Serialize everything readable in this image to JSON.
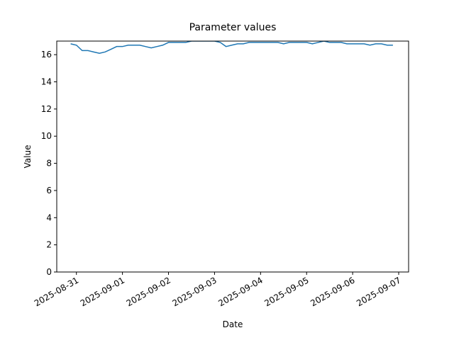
{
  "chart_data": {
    "type": "line",
    "title": "Parameter values",
    "x_label": "Date",
    "y_label": "Value",
    "x": [
      "2025-08-30 21:00",
      "2025-08-31 00:00",
      "2025-08-31 03:00",
      "2025-08-31 06:00",
      "2025-08-31 09:00",
      "2025-08-31 12:00",
      "2025-08-31 15:00",
      "2025-08-31 18:00",
      "2025-08-31 21:00",
      "2025-09-01 00:00",
      "2025-09-01 03:00",
      "2025-09-01 06:00",
      "2025-09-01 09:00",
      "2025-09-01 12:00",
      "2025-09-01 15:00",
      "2025-09-01 18:00",
      "2025-09-01 21:00",
      "2025-09-02 00:00",
      "2025-09-02 03:00",
      "2025-09-02 06:00",
      "2025-09-02 09:00",
      "2025-09-02 12:00",
      "2025-09-02 15:00",
      "2025-09-02 18:00",
      "2025-09-02 21:00",
      "2025-09-03 00:00",
      "2025-09-03 03:00",
      "2025-09-03 06:00",
      "2025-09-03 09:00",
      "2025-09-03 12:00",
      "2025-09-03 15:00",
      "2025-09-03 18:00",
      "2025-09-03 21:00",
      "2025-09-04 00:00",
      "2025-09-04 03:00",
      "2025-09-04 06:00",
      "2025-09-04 09:00",
      "2025-09-04 12:00",
      "2025-09-04 15:00",
      "2025-09-04 18:00",
      "2025-09-04 21:00",
      "2025-09-05 00:00",
      "2025-09-05 03:00",
      "2025-09-05 06:00",
      "2025-09-05 09:00",
      "2025-09-05 12:00",
      "2025-09-05 15:00",
      "2025-09-05 18:00",
      "2025-09-05 21:00",
      "2025-09-06 00:00",
      "2025-09-06 03:00",
      "2025-09-06 06:00",
      "2025-09-06 09:00",
      "2025-09-06 12:00",
      "2025-09-06 15:00",
      "2025-09-06 18:00",
      "2025-09-06 21:00"
    ],
    "series": [
      {
        "color": "#1f77b4",
        "values": [
          16.8,
          16.7,
          16.3,
          16.3,
          16.2,
          16.1,
          16.2,
          16.4,
          16.6,
          16.6,
          16.7,
          16.7,
          16.7,
          16.6,
          16.5,
          16.6,
          16.7,
          16.9,
          16.9,
          16.9,
          16.9,
          17.0,
          17.0,
          17.0,
          17.0,
          17.0,
          16.9,
          16.6,
          16.7,
          16.8,
          16.8,
          16.9,
          16.9,
          16.9,
          16.9,
          16.9,
          16.9,
          16.8,
          16.9,
          16.9,
          16.9,
          16.9,
          16.8,
          16.9,
          17.0,
          16.9,
          16.9,
          16.9,
          16.8,
          16.8,
          16.8,
          16.8,
          16.7,
          16.8,
          16.8,
          16.7,
          16.7
        ]
      }
    ],
    "xlim": [
      "2025-08-30 13:45",
      "2025-09-07 05:10"
    ],
    "xticks": [
      "2025-08-31",
      "2025-09-01",
      "2025-09-02",
      "2025-09-03",
      "2025-09-04",
      "2025-09-05",
      "2025-09-06",
      "2025-09-07"
    ],
    "ylim": [
      0,
      17
    ],
    "yticks": [
      0,
      2,
      4,
      6,
      8,
      10,
      12,
      14,
      16
    ],
    "grid": false
  }
}
